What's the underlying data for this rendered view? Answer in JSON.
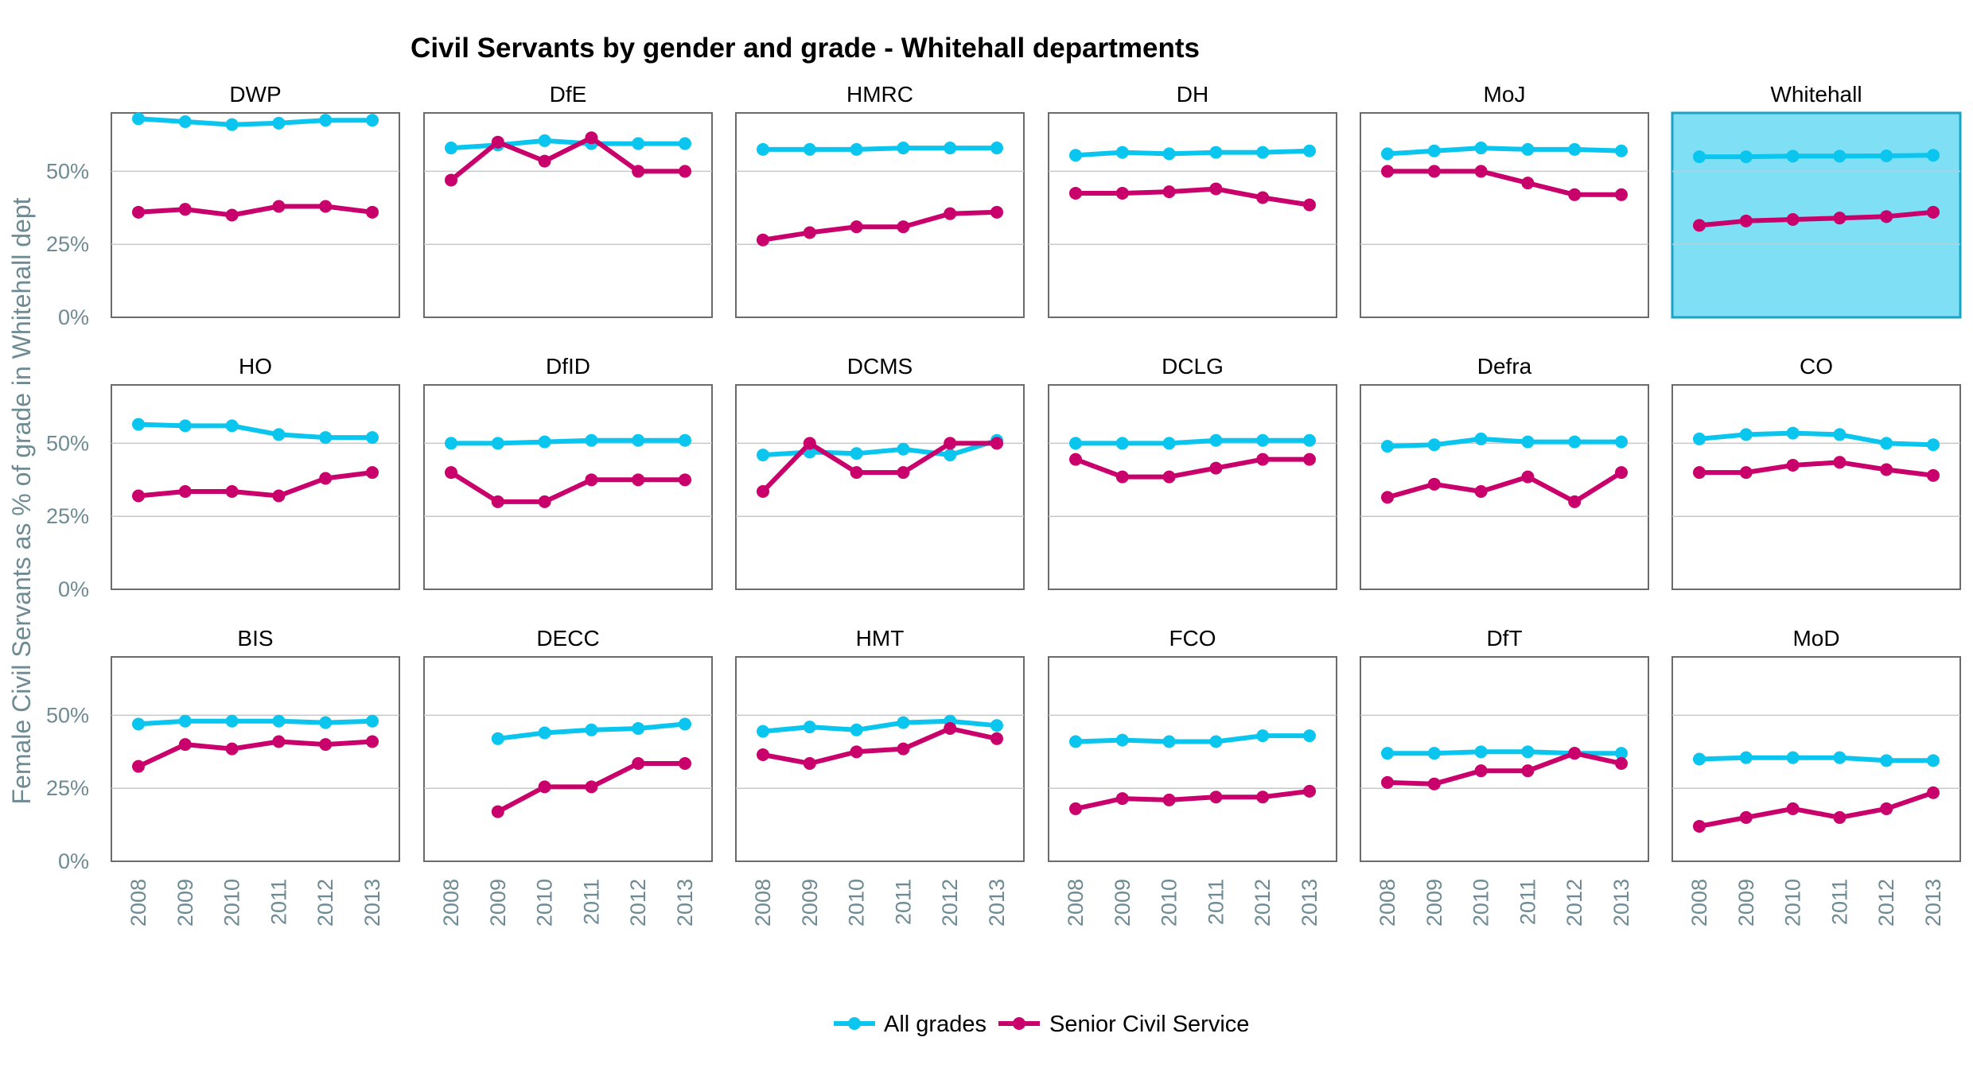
{
  "chart_data": {
    "type": "line",
    "title": "Civil Servants by gender and grade - Whitehall departments",
    "ylabel": "Female Civil Servants as % of grade in Whitehall dept",
    "xlabel": "",
    "x": [
      "2008",
      "2009",
      "2010",
      "2011",
      "2012",
      "2013"
    ],
    "ylim": [
      0,
      0.7
    ],
    "yticks": [
      "0%",
      "25%",
      "50%"
    ],
    "ytick_values": [
      0,
      0.25,
      0.5
    ],
    "grid": "horizontal",
    "legend_position": "bottom",
    "series_names": [
      "All grades",
      "Senior Civil Service"
    ],
    "colors": {
      "all_grades": "#0ac6ef",
      "senior": "#c9006b",
      "highlight_bg": "#7fdff5",
      "highlight_border": "#1aa3c4"
    },
    "highlight_panel": "Whitehall",
    "panels": [
      {
        "name": "DWP",
        "all": [
          0.68,
          0.67,
          0.66,
          0.665,
          0.675,
          0.675
        ],
        "scs": [
          0.36,
          0.37,
          0.35,
          0.38,
          0.38,
          0.36
        ]
      },
      {
        "name": "DfE",
        "all": [
          0.58,
          0.59,
          0.605,
          0.595,
          0.595,
          0.595
        ],
        "scs": [
          0.47,
          0.6,
          0.535,
          0.615,
          0.5,
          0.5
        ]
      },
      {
        "name": "HMRC",
        "all": [
          0.575,
          0.575,
          0.575,
          0.58,
          0.58,
          0.58
        ],
        "scs": [
          0.265,
          0.29,
          0.31,
          0.31,
          0.355,
          0.36
        ]
      },
      {
        "name": "DH",
        "all": [
          0.555,
          0.565,
          0.56,
          0.565,
          0.565,
          0.57
        ],
        "scs": [
          0.425,
          0.425,
          0.43,
          0.44,
          0.41,
          0.385
        ]
      },
      {
        "name": "MoJ",
        "all": [
          0.56,
          0.57,
          0.58,
          0.575,
          0.575,
          0.57
        ],
        "scs": [
          0.5,
          0.5,
          0.5,
          0.46,
          0.42,
          0.42
        ]
      },
      {
        "name": "Whitehall",
        "all": [
          0.55,
          0.55,
          0.552,
          0.552,
          0.553,
          0.555
        ],
        "scs": [
          0.315,
          0.33,
          0.335,
          0.34,
          0.345,
          0.36
        ]
      },
      {
        "name": "HO",
        "all": [
          0.565,
          0.56,
          0.56,
          0.53,
          0.52,
          0.52
        ],
        "scs": [
          0.32,
          0.335,
          0.335,
          0.32,
          0.38,
          0.4
        ]
      },
      {
        "name": "DfID",
        "all": [
          0.5,
          0.5,
          0.505,
          0.51,
          0.51,
          0.51
        ],
        "scs": [
          0.4,
          0.3,
          0.3,
          0.375,
          0.375,
          0.375
        ]
      },
      {
        "name": "DCMS",
        "all": [
          0.46,
          0.47,
          0.465,
          0.48,
          0.46,
          0.51
        ],
        "scs": [
          0.335,
          0.5,
          0.4,
          0.4,
          0.5,
          0.5
        ]
      },
      {
        "name": "DCLG",
        "all": [
          0.5,
          0.5,
          0.5,
          0.51,
          0.51,
          0.51
        ],
        "scs": [
          0.445,
          0.385,
          0.385,
          0.415,
          0.445,
          0.445
        ]
      },
      {
        "name": "Defra",
        "all": [
          0.49,
          0.495,
          0.515,
          0.505,
          0.505,
          0.505
        ],
        "scs": [
          0.315,
          0.36,
          0.335,
          0.385,
          0.3,
          0.4
        ]
      },
      {
        "name": "CO",
        "all": [
          0.515,
          0.53,
          0.535,
          0.53,
          0.5,
          0.495
        ],
        "scs": [
          0.4,
          0.4,
          0.425,
          0.435,
          0.41,
          0.39
        ]
      },
      {
        "name": "BIS",
        "all": [
          0.47,
          0.48,
          0.48,
          0.48,
          0.475,
          0.48
        ],
        "scs": [
          0.325,
          0.4,
          0.385,
          0.41,
          0.4,
          0.41
        ]
      },
      {
        "name": "DECC",
        "all": [
          null,
          0.42,
          0.44,
          0.45,
          0.455,
          0.47
        ],
        "scs": [
          null,
          0.17,
          0.255,
          0.255,
          0.335,
          0.335
        ]
      },
      {
        "name": "HMT",
        "all": [
          0.445,
          0.46,
          0.45,
          0.475,
          0.48,
          0.465
        ],
        "scs": [
          0.365,
          0.335,
          0.375,
          0.385,
          0.455,
          0.42
        ]
      },
      {
        "name": "FCO",
        "all": [
          0.41,
          0.415,
          0.41,
          0.41,
          0.43,
          0.43
        ],
        "scs": [
          0.18,
          0.215,
          0.21,
          0.22,
          0.22,
          0.24
        ]
      },
      {
        "name": "DfT",
        "all": [
          0.37,
          0.37,
          0.375,
          0.375,
          0.37,
          0.37
        ],
        "scs": [
          0.27,
          0.265,
          0.31,
          0.31,
          0.37,
          0.335
        ]
      },
      {
        "name": "MoD",
        "all": [
          0.35,
          0.355,
          0.355,
          0.355,
          0.345,
          0.345
        ],
        "scs": [
          0.12,
          0.15,
          0.18,
          0.15,
          0.18,
          0.235
        ]
      }
    ]
  }
}
